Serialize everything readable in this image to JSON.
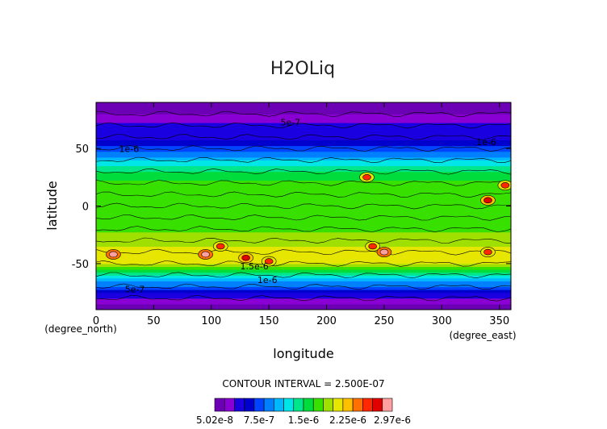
{
  "chart_data": {
    "type": "heatmap",
    "title": "H2OLiq",
    "xlabel": "longitude",
    "ylabel": "latitude",
    "x_unit_label": "(degree_east)",
    "y_unit_label": "(degree_north)",
    "xlim": [
      0,
      360
    ],
    "ylim": [
      -90,
      90
    ],
    "x_ticks": [
      0,
      50,
      100,
      150,
      200,
      250,
      300,
      350
    ],
    "y_ticks": [
      -50,
      0,
      50
    ],
    "contour_interval_text": "CONTOUR INTERVAL = 2.500E-07",
    "contour_labels": [
      "5e-7",
      "1e-6",
      "1e-6",
      "1.5e-6",
      "1e-6",
      "5e-7"
    ],
    "colorbar": {
      "tick_labels": [
        "5.02e-8",
        "7.5e-7",
        "1.5e-6",
        "2.25e-6",
        "2.97e-6"
      ],
      "min": 5.02e-08,
      "max": 2.97e-06,
      "colors": [
        "#6c00b4",
        "#8a00d4",
        "#1a00e0",
        "#0000cd",
        "#0044ff",
        "#0080ff",
        "#00b8ff",
        "#00e6e6",
        "#00e68a",
        "#00dc3c",
        "#38e000",
        "#a0e000",
        "#e6e600",
        "#ffc000",
        "#ff7000",
        "#ff2800",
        "#e00000",
        "#ffa0a0"
      ]
    },
    "lat_profile": [
      {
        "lat": -90,
        "value": 1e-07
      },
      {
        "lat": -80,
        "value": 3.5e-07
      },
      {
        "lat": -70,
        "value": 8e-07
      },
      {
        "lat": -60,
        "value": 1.35e-06
      },
      {
        "lat": -50,
        "value": 2e-06
      },
      {
        "lat": -40,
        "value": 2.1e-06
      },
      {
        "lat": -30,
        "value": 1.9e-06
      },
      {
        "lat": -20,
        "value": 1.8e-06
      },
      {
        "lat": -10,
        "value": 1.75e-06
      },
      {
        "lat": 0,
        "value": 1.75e-06
      },
      {
        "lat": 10,
        "value": 1.7e-06
      },
      {
        "lat": 20,
        "value": 1.7e-06
      },
      {
        "lat": 30,
        "value": 1.55e-06
      },
      {
        "lat": 40,
        "value": 1.15e-06
      },
      {
        "lat": 50,
        "value": 7.5e-07
      },
      {
        "lat": 60,
        "value": 5e-07
      },
      {
        "lat": 70,
        "value": 4e-07
      },
      {
        "lat": 80,
        "value": 2e-07
      },
      {
        "lat": 90,
        "value": 5.02e-08
      }
    ],
    "hotspots": [
      {
        "lon": 15,
        "lat": -42,
        "value": 2.97e-06
      },
      {
        "lon": 95,
        "lat": -42,
        "value": 2.9e-06
      },
      {
        "lon": 108,
        "lat": -35,
        "value": 2.6e-06
      },
      {
        "lon": 130,
        "lat": -45,
        "value": 2.8e-06
      },
      {
        "lon": 150,
        "lat": -48,
        "value": 2.5e-06
      },
      {
        "lon": 240,
        "lat": -35,
        "value": 2.6e-06
      },
      {
        "lon": 250,
        "lat": -40,
        "value": 2.9e-06
      },
      {
        "lon": 235,
        "lat": 25,
        "value": 2.5e-06
      },
      {
        "lon": 340,
        "lat": 5,
        "value": 2.7e-06
      },
      {
        "lon": 355,
        "lat": 18,
        "value": 2.5e-06
      },
      {
        "lon": 340,
        "lat": -40,
        "value": 2.5e-06
      }
    ]
  }
}
